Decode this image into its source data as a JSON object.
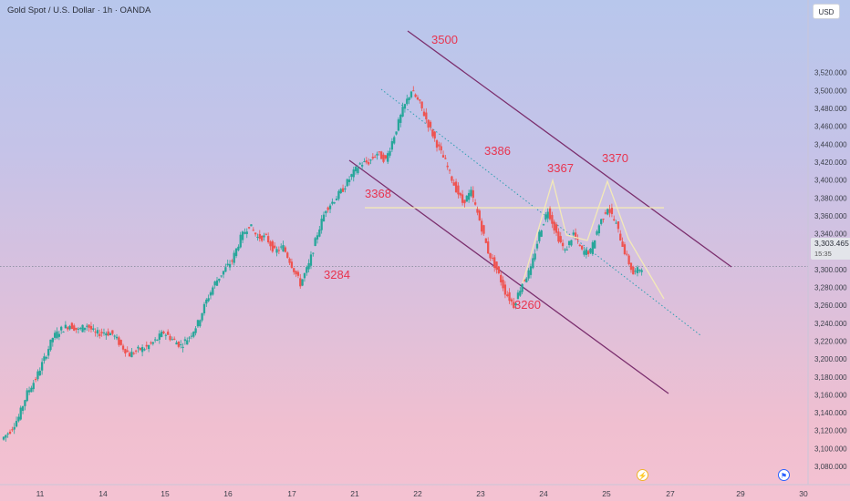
{
  "header": {
    "symbol_title": "Gold Spot / U.S. Dollar · 1h · OANDA",
    "currency_button": "USD"
  },
  "price_tag": {
    "price": "3,303.465",
    "countdown": "15:35"
  },
  "icons": {
    "flash": "flash-icon",
    "flag": "flag-icon"
  },
  "colors": {
    "up_candle": "#26a69a",
    "down_candle": "#ef5350",
    "channel": "#7b2f6e",
    "annotation": "#e8344f",
    "guide": "#ffffff"
  },
  "chart_data": {
    "type": "candlestick",
    "ylabel": "",
    "ylim": [
      3065,
      3535
    ],
    "y_ticks": [
      "3,080.000",
      "3,100.000",
      "3,120.000",
      "3,140.000",
      "3,160.000",
      "3,180.000",
      "3,200.000",
      "3,220.000",
      "3,240.000",
      "3,260.000",
      "3,280.000",
      "3,300.000",
      "3,320.000",
      "3,340.000",
      "3,360.000",
      "3,380.000",
      "3,400.000",
      "3,420.000",
      "3,440.000",
      "3,460.000",
      "3,480.000",
      "3,500.000",
      "3,520.000"
    ],
    "x_ticks": [
      "11",
      "14",
      "15",
      "16",
      "17",
      "21",
      "22",
      "23",
      "24",
      "25",
      "26",
      "27",
      "29",
      "30"
    ],
    "price_path": [
      [
        3105,
        3110
      ],
      [
        3112,
        3120
      ],
      [
        3130,
        3135
      ],
      [
        3150,
        3162
      ],
      [
        3170,
        3178
      ],
      [
        3190,
        3200
      ],
      [
        3215,
        3224
      ],
      [
        3228,
        3233
      ],
      [
        3230,
        3238
      ],
      [
        3225,
        3232
      ],
      [
        3228,
        3238
      ],
      [
        3240,
        3228
      ],
      [
        3222,
        3230
      ],
      [
        3232,
        3228
      ],
      [
        3220,
        3215
      ],
      [
        3212,
        3205
      ],
      [
        3200,
        3210
      ],
      [
        3208,
        3213
      ],
      [
        3212,
        3220
      ],
      [
        3225,
        3230
      ],
      [
        3228,
        3222
      ],
      [
        3220,
        3215
      ],
      [
        3213,
        3225
      ],
      [
        3230,
        3240
      ],
      [
        3250,
        3265
      ],
      [
        3275,
        3285
      ],
      [
        3292,
        3298
      ],
      [
        3300,
        3310
      ],
      [
        3320,
        3335
      ],
      [
        3340,
        3350
      ],
      [
        3345,
        3336
      ],
      [
        3330,
        3336
      ],
      [
        3325,
        3320
      ],
      [
        3318,
        3325
      ],
      [
        3315,
        3305
      ],
      [
        3295,
        3284
      ],
      [
        3290,
        3305
      ],
      [
        3320,
        3340
      ],
      [
        3360,
        3368
      ],
      [
        3372,
        3378
      ],
      [
        3380,
        3390
      ],
      [
        3395,
        3405
      ],
      [
        3410,
        3418
      ],
      [
        3425,
        3420
      ],
      [
        3415,
        3430
      ],
      [
        3428,
        3422
      ],
      [
        3430,
        3450
      ],
      [
        3460,
        3478
      ],
      [
        3490,
        3500
      ],
      [
        3495,
        3485
      ],
      [
        3480,
        3462
      ],
      [
        3455,
        3440
      ],
      [
        3435,
        3420
      ],
      [
        3410,
        3395
      ],
      [
        3386,
        3375
      ],
      [
        3380,
        3386
      ],
      [
        3370,
        3355
      ],
      [
        3340,
        3320
      ],
      [
        3310,
        3300
      ],
      [
        3290,
        3275
      ],
      [
        3268,
        3260
      ],
      [
        3270,
        3285
      ],
      [
        3290,
        3300
      ],
      [
        3310,
        3340
      ],
      [
        3360,
        3367
      ],
      [
        3355,
        3340
      ],
      [
        3330,
        3320
      ],
      [
        3330,
        3340
      ],
      [
        3335,
        3320
      ],
      [
        3310,
        3320
      ],
      [
        3335,
        3350
      ],
      [
        3360,
        3370
      ],
      [
        3362,
        3350
      ],
      [
        3340,
        3320
      ],
      [
        3310,
        3295
      ],
      [
        3300,
        3303
      ]
    ],
    "annotations": [
      {
        "label": "3500",
        "value": 3500
      },
      {
        "label": "3386",
        "value": 3386
      },
      {
        "label": "3367",
        "value": 3367
      },
      {
        "label": "3370",
        "value": 3370
      },
      {
        "label": "3368",
        "value": 3368
      },
      {
        "label": "3284",
        "value": 3284
      },
      {
        "label": "3260",
        "value": 3260
      }
    ],
    "current_price": 3303.465,
    "grid": false,
    "legend": "none"
  }
}
